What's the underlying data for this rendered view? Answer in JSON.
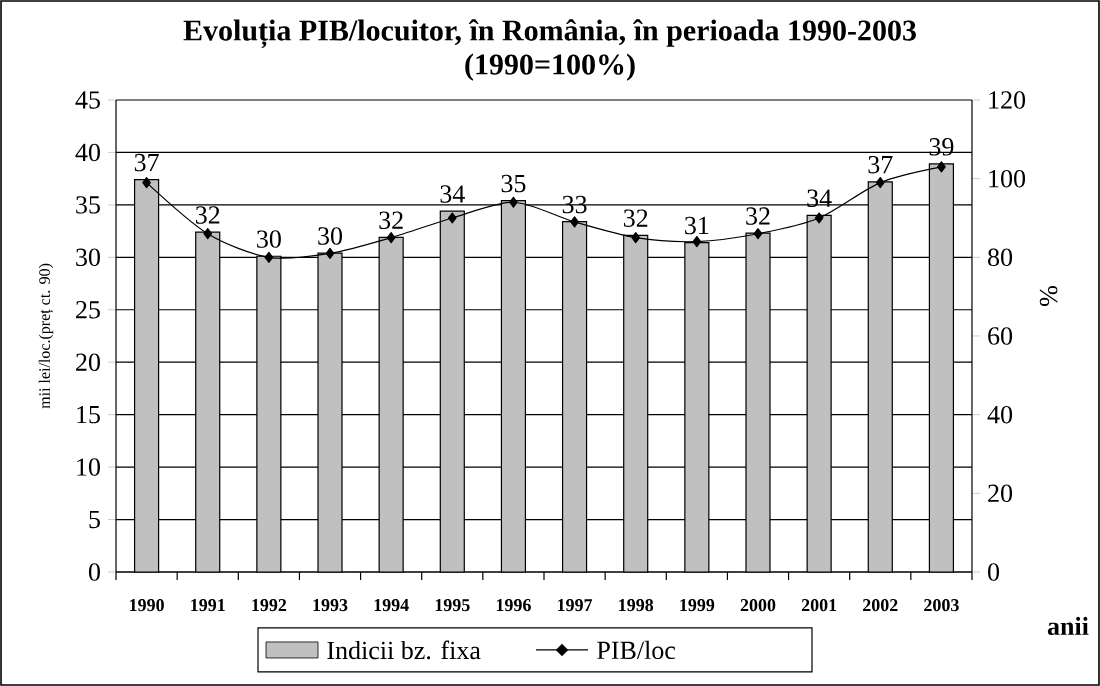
{
  "chart_data": {
    "type": "bar",
    "title": "Evoluția PIB/locuitor, în România, în perioada 1990-2003",
    "subtitle": "(1990=100%)",
    "xlabel": "anii",
    "ylabel": "mii lei/loc.(preț ct. 90)",
    "y2label": "%",
    "categories": [
      "1990",
      "1991",
      "1992",
      "1993",
      "1994",
      "1995",
      "1996",
      "1997",
      "1998",
      "1999",
      "2000",
      "2001",
      "2002",
      "2003"
    ],
    "series": [
      {
        "name": "Indicii bz. fixa",
        "color": "#c0c0c0",
        "values": [
          37.4,
          32.4,
          30.1,
          30.4,
          31.9,
          34.4,
          35.4,
          33.4,
          32.1,
          31.4,
          32.3,
          34.0,
          37.2,
          38.9
        ],
        "value_labels": [
          "37",
          "32",
          "30",
          "30",
          "32",
          "34",
          "35",
          "33",
          "32",
          "31",
          "32",
          "34",
          "37",
          "39"
        ]
      },
      {
        "name": "PIB/loc",
        "type": "line",
        "axis": "y2",
        "color": "#000000",
        "marker": "diamond",
        "values": [
          99,
          86,
          80,
          81,
          85,
          90,
          94,
          89,
          85,
          84,
          86,
          90,
          99,
          103
        ]
      }
    ],
    "ylim": [
      0,
      45
    ],
    "yticks": [
      0,
      5,
      10,
      15,
      20,
      25,
      30,
      35,
      40,
      45
    ],
    "y2lim": [
      0,
      120
    ],
    "y2ticks": [
      0,
      20,
      40,
      60,
      80,
      100,
      120
    ],
    "grid": "y",
    "legend": "bottom"
  }
}
